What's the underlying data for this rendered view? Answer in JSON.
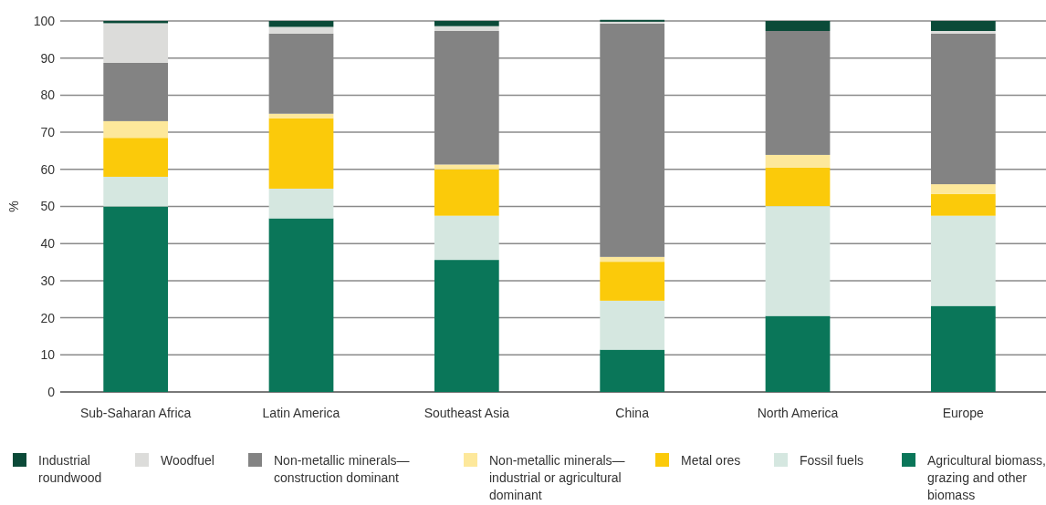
{
  "chart_data": {
    "type": "bar",
    "stacked": true,
    "ylabel": "%",
    "categories": [
      "Sub-Saharan Africa",
      "Latin America",
      "Southeast Asia",
      "China",
      "North America",
      "Europe"
    ],
    "series": [
      {
        "name": "Agricultural biomass, grazing and other biomass",
        "color": "#0a7659",
        "values": [
          50,
          46.8,
          35.6,
          11.4,
          20.5,
          23.2
        ]
      },
      {
        "name": "Fossil fuels",
        "color": "#d5e7e0",
        "values": [
          8,
          8,
          11.9,
          13.2,
          29.6,
          24.3
        ]
      },
      {
        "name": "Metal ores",
        "color": "#fbca0a",
        "values": [
          10.5,
          19,
          12.5,
          10.5,
          10.4,
          5.9
        ]
      },
      {
        "name": "Non-metallic minerals—industrial or agricultural dominant",
        "color": "#fde89b",
        "values": [
          4.5,
          1.2,
          1.3,
          1.3,
          3.4,
          2.6
        ]
      },
      {
        "name": "Non-metallic minerals—construction dominant",
        "color": "#838383",
        "values": [
          15.7,
          21.6,
          36,
          62.9,
          33.4,
          40.6
        ]
      },
      {
        "name": "Woodfuel",
        "color": "#dcdcda",
        "values": [
          10.7,
          1.8,
          1.3,
          0.5,
          0,
          0.7
        ]
      },
      {
        "name": "Industrial roundwood",
        "color": "#0b4a38",
        "values": [
          0.6,
          1.6,
          1.4,
          0.5,
          2.7,
          2.7
        ]
      }
    ],
    "ylim": [
      0,
      100
    ],
    "yticks": [
      0,
      10,
      20,
      30,
      40,
      50,
      60,
      70,
      80,
      90,
      100
    ],
    "grid": "y",
    "legend": "bottom"
  }
}
